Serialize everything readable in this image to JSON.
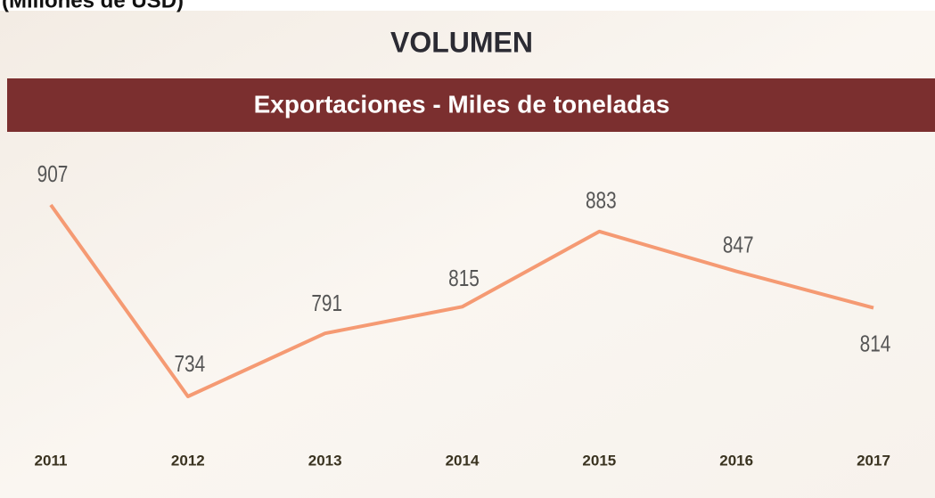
{
  "chart_data": {
    "type": "line",
    "note_top": "(Millones de USD)",
    "title": "VOLUMEN",
    "subtitle": "Exportaciones - Miles de toneladas",
    "categories": [
      "2011",
      "2012",
      "2013",
      "2014",
      "2015",
      "2016",
      "2017"
    ],
    "values": [
      907,
      734,
      791,
      815,
      883,
      847,
      814
    ],
    "color": "#f59a73",
    "grid": false
  }
}
